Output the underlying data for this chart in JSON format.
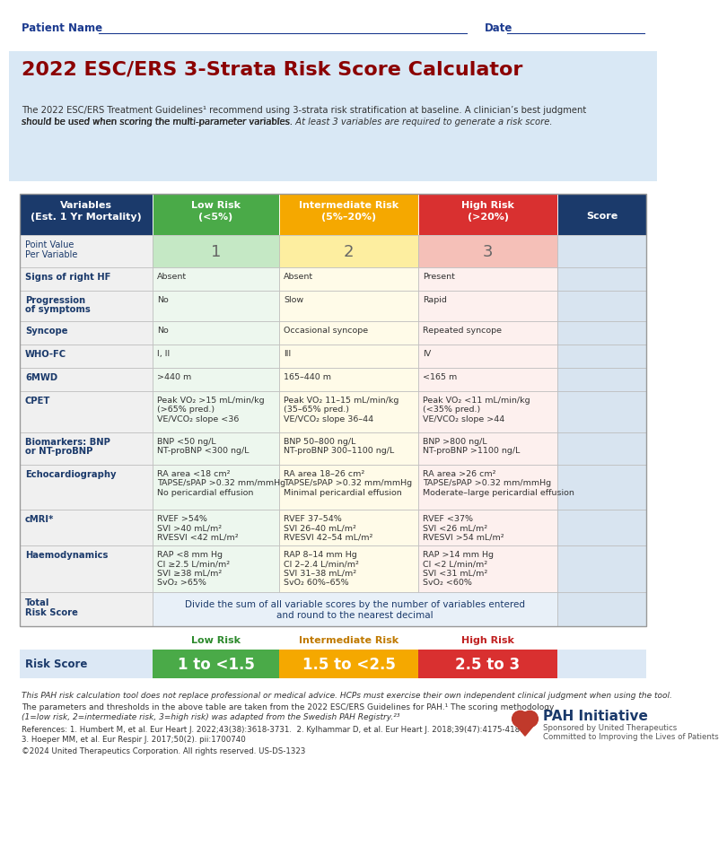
{
  "title": "2022 ESC/ERS 3-Strata Risk Score Calculator",
  "patient_label": "Patient Name",
  "date_label": "Date",
  "bg_header": "#d9e8f5",
  "col_header_bg": "#1b3a6b",
  "low_risk_header_bg": "#4aaa48",
  "inter_risk_header_bg": "#f5a800",
  "high_risk_header_bg": "#d93030",
  "low_risk_cell_bg": "#edf7ee",
  "inter_risk_cell_bg": "#fffbe8",
  "high_risk_cell_bg": "#fdf0ee",
  "point_low_bg": "#c5e8c5",
  "point_inter_bg": "#fdeea0",
  "point_high_bg": "#f5c0b8",
  "score_col_bg": "#d8e4f0",
  "var_col_bg": "#f0f0f0",
  "row_header_color": "#1b3a6b",
  "cell_text_color": "#333333",
  "total_row_bg": "#e8f0f8",
  "risk_score_row_bg": "#dce8f5",
  "rows": [
    {
      "variable": "Signs of right HF",
      "low": "Absent",
      "inter": "Absent",
      "high": "Present"
    },
    {
      "variable": "Progression\nof symptoms",
      "low": "No",
      "inter": "Slow",
      "high": "Rapid"
    },
    {
      "variable": "Syncope",
      "low": "No",
      "inter": "Occasional syncope",
      "high": "Repeated syncope"
    },
    {
      "variable": "WHO-FC",
      "low": "I, II",
      "inter": "III",
      "high": "IV"
    },
    {
      "variable": "6MWD",
      "low": ">440 m",
      "inter": "165–440 m",
      "high": "<165 m"
    },
    {
      "variable": "CPET",
      "low": "Peak VO₂ >15 mL/min/kg\n(>65% pred.)\nVE/VCO₂ slope <36",
      "inter": "Peak VO₂ 11–15 mL/min/kg\n(35–65% pred.)\nVE/VCO₂ slope 36–44",
      "high": "Peak VO₂ <11 mL/min/kg\n(<35% pred.)\nVE/VCO₂ slope >44"
    },
    {
      "variable": "Biomarkers: BNP\nor NT-proBNP",
      "low": "BNP <50 ng/L\nNT-proBNP <300 ng/L",
      "inter": "BNP 50–800 ng/L\nNT-proBNP 300–1100 ng/L",
      "high": "BNP >800 ng/L\nNT-proBNP >1100 ng/L"
    },
    {
      "variable": "Echocardiography",
      "low": "RA area <18 cm²\nTAPSE/sPAP >0.32 mm/mmHg\nNo pericardial effusion",
      "inter": "RA area 18–26 cm²\nTAPSE/sPAP >0.32 mm/mmHg\nMinimal pericardial effusion",
      "high": "RA area >26 cm²\nTAPSE/sPAP >0.32 mm/mmHg\nModerate–large pericardial effusion"
    },
    {
      "variable": "cMRI*",
      "low": "RVEF >54%\nSVI >40 mL/m²\nRVESVI <42 mL/m²",
      "inter": "RVEF 37–54%\nSVI 26–40 mL/m²\nRVESVI 42–54 mL/m²",
      "high": "RVEF <37%\nSVI <26 mL/m²\nRVESVI >54 mL/m²"
    },
    {
      "variable": "Haemodynamics",
      "low": "RAP <8 mm Hg\nCI ≥2.5 L/min/m²\nSVI ≥38 mL/m²\nSvO₂ >65%",
      "inter": "RAP 8–14 mm Hg\nCI 2–2.4 L/min/m²\nSVI 31–38 mL/m²\nSvO₂ 60%–65%",
      "high": "RAP >14 mm Hg\nCI <2 L/min/m²\nSVI <31 mL/m²\nSvO₂ <60%"
    }
  ],
  "total_row_text_line1": "Divide the sum of all variable scores by the number of variables entered",
  "total_row_text_line2": "and round to the nearest decimal",
  "risk_score_low": "1 to <1.5",
  "risk_score_inter": "1.5 to <2.5",
  "risk_score_high": "2.5 to 3",
  "footnote1": "This PAH risk calculation tool does not replace professional or medical advice. HCPs must exercise their own independent clinical judgment when using the tool.",
  "footnote2": "The parameters and thresholds in the above table are taken from the 2022 ESC/ERS Guidelines for PAH.¹ The scoring methodology",
  "footnote3": "(1=low risk, 2=intermediate risk, 3=high risk) was adapted from the Swedish PAH Registry.²³",
  "ref1": "References: 1. Humbert M, et al. Eur Heart J. 2022;43(38):3618-3731.  2. Kylhammar D, et al. Eur Heart J. 2018;39(47):4175-4181.",
  "ref2": "3. Hoeper MM, et al. Eur Respir J. 2017;50(2). pii:1700740",
  "copyright": "©2024 United Therapeutics Corporation. All rights reserved. US-DS-1323",
  "pah_initiative_text": "PAH Initiative",
  "pah_sub1": "Sponsored by United Therapeutics",
  "pah_sub2": "Committed to Improving the Lives of Patients"
}
